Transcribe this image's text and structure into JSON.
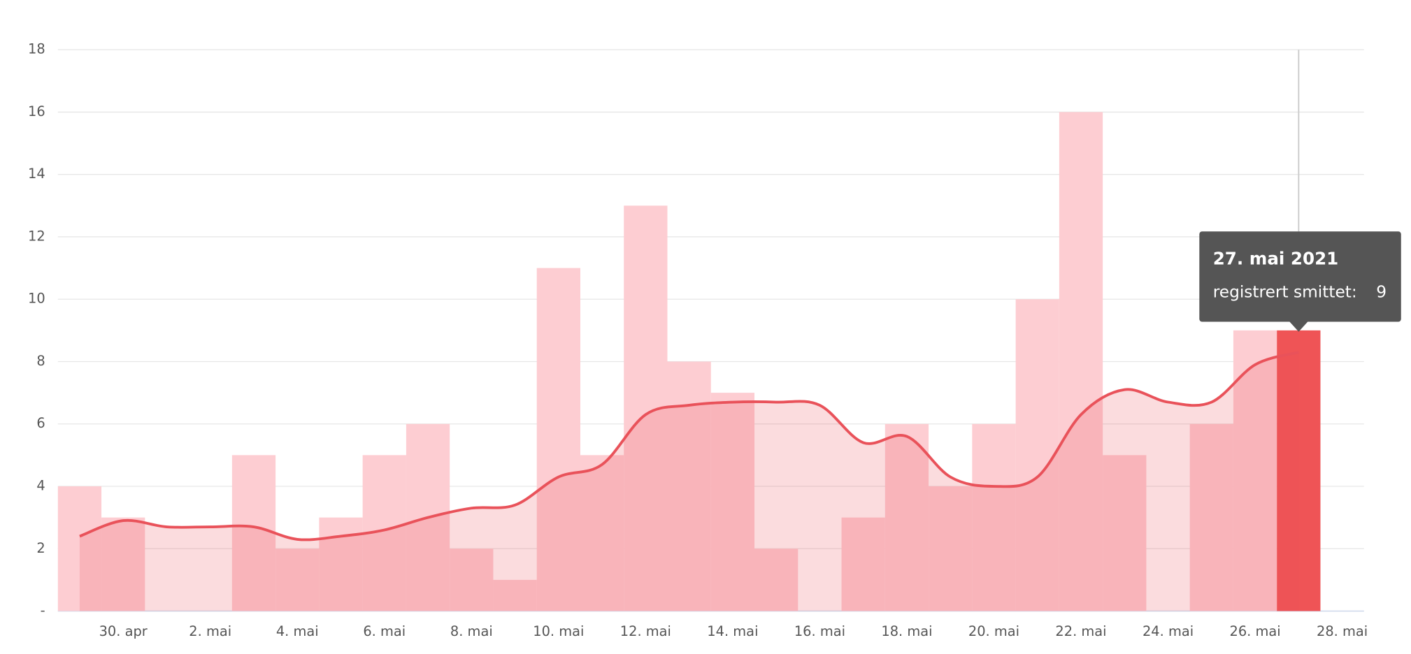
{
  "chart_data": {
    "type": "bar",
    "categories": [
      null,
      "30. apr",
      null,
      "2. mai",
      null,
      "4. mai",
      null,
      "6. mai",
      null,
      "8. mai",
      null,
      "10. mai",
      null,
      "12. mai",
      null,
      "14. mai",
      null,
      "16. mai",
      null,
      "18. mai",
      null,
      "20. mai",
      null,
      "22. mai",
      null,
      "24. mai",
      null,
      "26. mai",
      null,
      "28. mai"
    ],
    "series": [
      {
        "type": "bar",
        "color": "#fdcdd2",
        "values": [
          4,
          3,
          0,
          0,
          5,
          2,
          3,
          5,
          6,
          2,
          1,
          11,
          5,
          13,
          8,
          7,
          2,
          0,
          3,
          6,
          4,
          6,
          10,
          16,
          5,
          0,
          6,
          9,
          9,
          null
        ]
      },
      {
        "type": "line",
        "color": "#e9525a",
        "values": [
          2.4,
          2.9,
          2.7,
          2.7,
          2.7,
          2.3,
          2.4,
          2.6,
          3.0,
          3.3,
          3.4,
          4.3,
          4.7,
          6.3,
          6.6,
          6.7,
          6.7,
          6.6,
          5.4,
          5.6,
          4.3,
          4.0,
          4.3,
          6.3,
          7.1,
          6.7,
          6.7,
          7.9,
          8.3,
          null
        ]
      }
    ],
    "ylim": [
      0,
      18
    ],
    "yticks": [
      {
        "value": 0,
        "label": "-"
      },
      2,
      4,
      6,
      8,
      10,
      12,
      14,
      16,
      18
    ],
    "grid": true,
    "tooltip": {
      "hover_index": 28,
      "color": "#ef5456",
      "title": "27. mai 2021",
      "label": "registrert smittet:"
    }
  }
}
